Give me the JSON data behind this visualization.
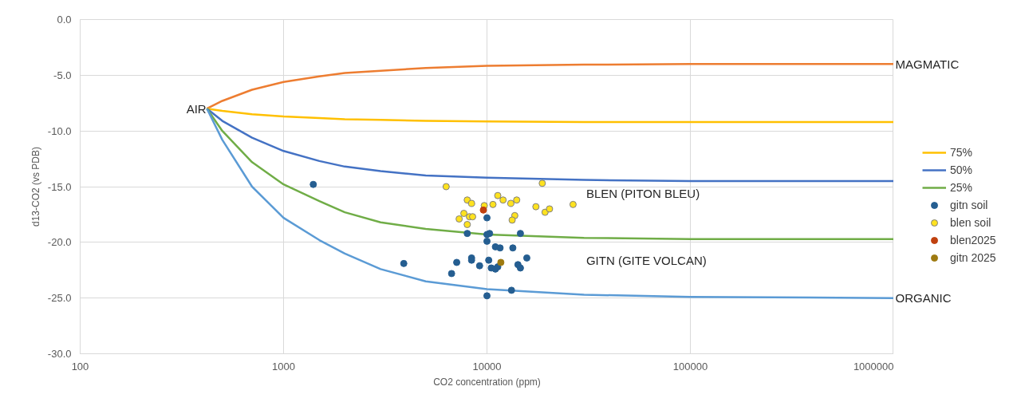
{
  "chart_data": {
    "type": "line",
    "xlabel": "CO2 concentration (ppm)",
    "ylabel": "d13-CO2 (vs PDB)",
    "log": "x",
    "grid": true,
    "legend": "right",
    "xlim": [
      100,
      1000000
    ],
    "ylim": [
      -30,
      0
    ],
    "xticks": [
      100,
      1000,
      10000,
      100000,
      1000000
    ],
    "yticks": [
      {
        "value": -30,
        "label": "-30.0"
      },
      {
        "value": -25,
        "label": "-25.0"
      },
      {
        "value": -20,
        "label": "-20.0"
      },
      {
        "value": -15,
        "label": "-15.0"
      },
      {
        "value": -10,
        "label": "-10.0"
      },
      {
        "value": -5,
        "label": "-5.0"
      },
      {
        "value": 0,
        "label": "0.0"
      }
    ],
    "annotations": [
      "AIR",
      "MAGMATIC",
      "ORGANIC",
      "BLEN (PITON BLEU)",
      "GITN (GITE VOLCAN)"
    ],
    "series": [
      {
        "color": "#ed7d31",
        "marker": "none",
        "x": [
          420,
          500,
          700,
          1000,
          1500,
          2000,
          3000,
          5000,
          10000,
          30000,
          100000,
          1000000
        ],
        "values": [
          -8,
          -7.3,
          -6.3,
          -5.6,
          -5.1,
          -4.8,
          -4.6,
          -4.35,
          -4.15,
          -4.05,
          -4.0,
          -4.0
        ]
      },
      {
        "name": "75%",
        "color": "#ffc000",
        "marker": "none",
        "x": [
          420,
          500,
          700,
          1000,
          1500,
          2000,
          3000,
          5000,
          10000,
          30000,
          100000,
          1000000
        ],
        "values": [
          -8,
          -8.2,
          -8.5,
          -8.7,
          -8.85,
          -8.95,
          -9.0,
          -9.1,
          -9.15,
          -9.2,
          -9.2,
          -9.2
        ]
      },
      {
        "name": "50%",
        "color": "#4472c4",
        "marker": "none",
        "x": [
          420,
          500,
          700,
          1000,
          1500,
          2000,
          3000,
          5000,
          10000,
          30000,
          100000,
          1000000
        ],
        "values": [
          -8,
          -9.1,
          -10.6,
          -11.8,
          -12.7,
          -13.2,
          -13.6,
          -14.0,
          -14.2,
          -14.4,
          -14.5,
          -14.5
        ]
      },
      {
        "name": "25%",
        "color": "#70ad47",
        "marker": "none",
        "x": [
          420,
          500,
          700,
          1000,
          1500,
          2000,
          3000,
          5000,
          10000,
          30000,
          100000,
          1000000
        ],
        "values": [
          -8,
          -10.0,
          -12.8,
          -14.8,
          -16.3,
          -17.3,
          -18.2,
          -18.8,
          -19.3,
          -19.6,
          -19.7,
          -19.7
        ]
      },
      {
        "color": "#5b9bd5",
        "marker": "none",
        "x": [
          420,
          500,
          700,
          1000,
          1500,
          2000,
          3000,
          5000,
          10000,
          30000,
          100000,
          1000000
        ],
        "values": [
          -8,
          -10.8,
          -15.0,
          -17.8,
          -19.8,
          -21.0,
          -22.4,
          -23.5,
          -24.2,
          -24.7,
          -24.9,
          -25.0
        ]
      },
      {
        "type": "scatter",
        "name": "gitn soil",
        "color": "#255e91",
        "marker": "circle",
        "x": [
          1400,
          3900,
          6700,
          7100,
          8000,
          8400,
          8400,
          9200,
          10000,
          10000,
          10300,
          10000,
          10200,
          10500,
          11000,
          11300,
          11000,
          11600,
          13400,
          13200,
          10000,
          14200,
          14600,
          14600,
          15700
        ],
        "values": [
          -14.8,
          -21.9,
          -22.8,
          -21.8,
          -19.2,
          -21.4,
          -21.6,
          -22.1,
          -17.8,
          -19.3,
          -19.2,
          -19.9,
          -21.6,
          -22.3,
          -22.4,
          -22.2,
          -20.4,
          -20.5,
          -20.5,
          -24.3,
          -24.8,
          -22.0,
          -22.3,
          -19.2,
          -21.4
        ]
      },
      {
        "type": "scatter",
        "name": "blen soil",
        "color": "#ffe21f",
        "marker": "circle",
        "x": [
          6300,
          8000,
          8400,
          7700,
          7300,
          8200,
          8500,
          8000,
          9700,
          10700,
          11300,
          12000,
          13100,
          14000,
          13700,
          13300,
          18700,
          17400,
          19300,
          20300,
          26500
        ],
        "values": [
          -15.0,
          -16.2,
          -16.5,
          -17.4,
          -17.9,
          -17.7,
          -17.7,
          -18.4,
          -16.7,
          -16.6,
          -15.8,
          -16.2,
          -16.5,
          -16.2,
          -17.6,
          -18.0,
          -14.7,
          -16.8,
          -17.3,
          -17.0,
          -16.6
        ]
      },
      {
        "type": "scatter",
        "name": "blen2025",
        "color": "#c0410f",
        "marker": "circle",
        "x": [
          9600
        ],
        "values": [
          -17.1
        ]
      },
      {
        "type": "scatter",
        "name": "gitn 2025",
        "color": "#9e7a10",
        "marker": "circle",
        "x": [
          11700
        ],
        "values": [
          -21.8
        ]
      }
    ]
  }
}
